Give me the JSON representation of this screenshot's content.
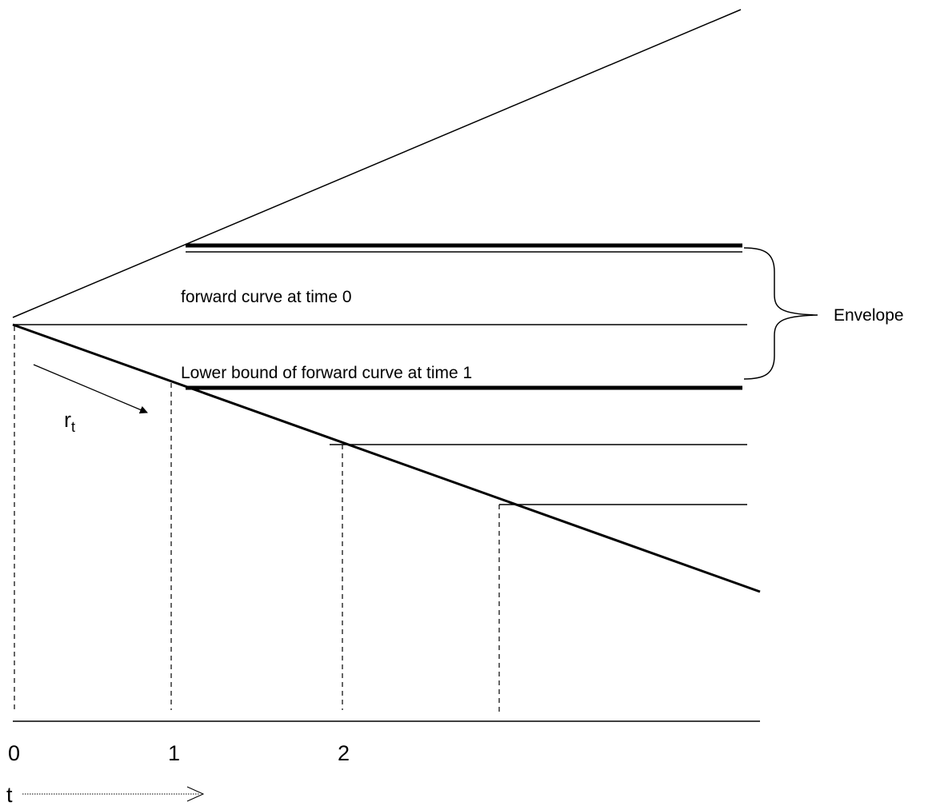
{
  "diagram": {
    "labels": {
      "forward_curve_time0": "forward curve at time 0",
      "lower_bound_time1": "Lower bound of forward curve at time 1",
      "envelope": "Envelope",
      "rate_base": "r",
      "rate_sub": "t",
      "tick_0": "0",
      "tick_1": "1",
      "tick_2": "2",
      "time_axis": "t"
    },
    "colors": {
      "ink": "#000000",
      "background": "#ffffff"
    }
  }
}
